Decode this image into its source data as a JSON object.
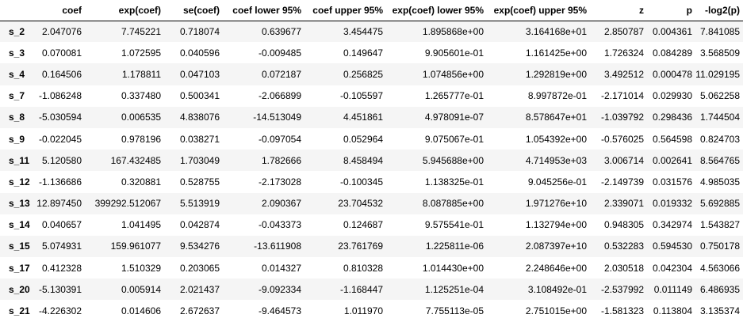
{
  "table": {
    "index_header": "",
    "columns": [
      "coef",
      "exp(coef)",
      "se(coef)",
      "coef lower 95%",
      "coef upper 95%",
      "exp(coef) lower 95%",
      "exp(coef) upper 95%",
      "z",
      "p",
      "-log2(p)"
    ],
    "rows": [
      {
        "label": "s_2",
        "values": [
          "2.047076",
          "7.745221",
          "0.718074",
          "0.639677",
          "3.454475",
          "1.895868e+00",
          "3.164168e+01",
          "2.850787",
          "0.004361",
          "7.841085"
        ]
      },
      {
        "label": "s_3",
        "values": [
          "0.070081",
          "1.072595",
          "0.040596",
          "-0.009485",
          "0.149647",
          "9.905601e-01",
          "1.161425e+00",
          "1.726324",
          "0.084289",
          "3.568509"
        ]
      },
      {
        "label": "s_4",
        "values": [
          "0.164506",
          "1.178811",
          "0.047103",
          "0.072187",
          "0.256825",
          "1.074856e+00",
          "1.292819e+00",
          "3.492512",
          "0.000478",
          "11.029195"
        ]
      },
      {
        "label": "s_7",
        "values": [
          "-1.086248",
          "0.337480",
          "0.500341",
          "-2.066899",
          "-0.105597",
          "1.265777e-01",
          "8.997872e-01",
          "-2.171014",
          "0.029930",
          "5.062258"
        ]
      },
      {
        "label": "s_8",
        "values": [
          "-5.030594",
          "0.006535",
          "4.838076",
          "-14.513049",
          "4.451861",
          "4.978091e-07",
          "8.578647e+01",
          "-1.039792",
          "0.298436",
          "1.744504"
        ]
      },
      {
        "label": "s_9",
        "values": [
          "-0.022045",
          "0.978196",
          "0.038271",
          "-0.097054",
          "0.052964",
          "9.075067e-01",
          "1.054392e+00",
          "-0.576025",
          "0.564598",
          "0.824703"
        ]
      },
      {
        "label": "s_11",
        "values": [
          "5.120580",
          "167.432485",
          "1.703049",
          "1.782666",
          "8.458494",
          "5.945688e+00",
          "4.714953e+03",
          "3.006714",
          "0.002641",
          "8.564765"
        ]
      },
      {
        "label": "s_12",
        "values": [
          "-1.136686",
          "0.320881",
          "0.528755",
          "-2.173028",
          "-0.100345",
          "1.138325e-01",
          "9.045256e-01",
          "-2.149739",
          "0.031576",
          "4.985035"
        ]
      },
      {
        "label": "s_13",
        "values": [
          "12.897450",
          "399292.512067",
          "5.513919",
          "2.090367",
          "23.704532",
          "8.087885e+00",
          "1.971276e+10",
          "2.339071",
          "0.019332",
          "5.692885"
        ]
      },
      {
        "label": "s_14",
        "values": [
          "0.040657",
          "1.041495",
          "0.042874",
          "-0.043373",
          "0.124687",
          "9.575541e-01",
          "1.132794e+00",
          "0.948305",
          "0.342974",
          "1.543827"
        ]
      },
      {
        "label": "s_15",
        "values": [
          "5.074931",
          "159.961077",
          "9.534276",
          "-13.611908",
          "23.761769",
          "1.225811e-06",
          "2.087397e+10",
          "0.532283",
          "0.594530",
          "0.750178"
        ]
      },
      {
        "label": "s_17",
        "values": [
          "0.412328",
          "1.510329",
          "0.203065",
          "0.014327",
          "0.810328",
          "1.014430e+00",
          "2.248646e+00",
          "2.030518",
          "0.042304",
          "4.563066"
        ]
      },
      {
        "label": "s_20",
        "values": [
          "-5.130391",
          "0.005914",
          "2.021437",
          "-9.092334",
          "-1.168447",
          "1.125251e-04",
          "3.108492e-01",
          "-2.537992",
          "0.011149",
          "6.486935"
        ]
      },
      {
        "label": "s_21",
        "values": [
          "-4.226302",
          "0.014606",
          "2.672637",
          "-9.464573",
          "1.011970",
          "7.755113e-05",
          "2.751015e+00",
          "-1.581323",
          "0.113804",
          "3.135374"
        ]
      }
    ]
  }
}
